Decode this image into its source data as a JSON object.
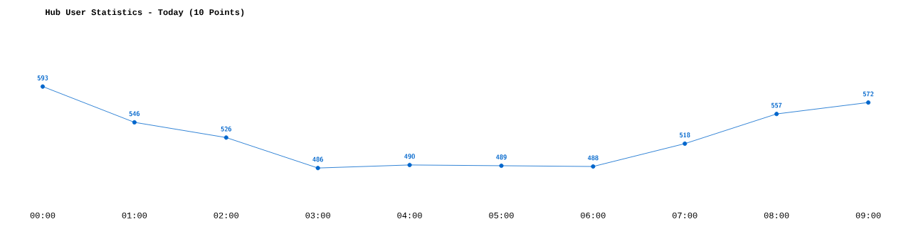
{
  "chart_data": {
    "type": "line",
    "title": "Hub User Statistics - Today (10 Points)",
    "categories": [
      "00:00",
      "01:00",
      "02:00",
      "03:00",
      "04:00",
      "05:00",
      "06:00",
      "07:00",
      "08:00",
      "09:00"
    ],
    "values": [
      593,
      546,
      526,
      486,
      490,
      489,
      488,
      518,
      557,
      572
    ],
    "color": "#0066cc",
    "marker": "circle",
    "data_labels": true
  }
}
